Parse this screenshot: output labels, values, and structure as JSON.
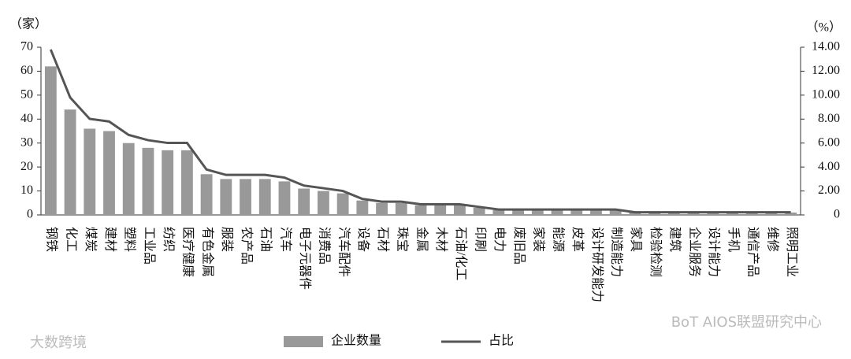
{
  "chart_data": {
    "type": "bar_line",
    "y_label": "（家）",
    "y2_label": "（%）",
    "categories": [
      "钢铁",
      "化工",
      "煤炭",
      "建材",
      "塑料",
      "工业品",
      "纺织",
      "医疗健康",
      "有色金属",
      "服装",
      "农产品",
      "石油",
      "汽车",
      "电子元器件",
      "消费品",
      "汽车配件",
      "设备",
      "石材",
      "珠宝",
      "金属",
      "木材",
      "石油/化工",
      "印刷",
      "电力",
      "废旧品",
      "家装",
      "能源",
      "皮革",
      "设计研发能力",
      "制造能力",
      "家具",
      "检验检测",
      "建筑",
      "企业服务",
      "设计能力",
      "手机",
      "通信产品",
      "维修",
      "照明工业"
    ],
    "series": [
      {
        "name": "企业数量",
        "color": "#999999",
        "kind": "bar",
        "values": [
          62,
          44,
          36,
          35,
          30,
          28,
          27,
          27,
          17,
          15,
          15,
          15,
          14,
          11,
          10,
          9,
          6,
          5,
          5,
          4,
          4,
          4,
          3,
          2,
          2,
          2,
          2,
          2,
          2,
          2,
          1,
          1,
          1,
          1,
          1,
          1,
          1,
          1,
          1
        ]
      },
      {
        "name": "占比",
        "color": "#555555",
        "kind": "line",
        "axis": "y2",
        "values": [
          13.81,
          9.8,
          8.02,
          7.8,
          6.68,
          6.24,
          6.01,
          6.01,
          3.79,
          3.34,
          3.34,
          3.34,
          3.12,
          2.45,
          2.23,
          2.0,
          1.34,
          1.11,
          1.11,
          0.89,
          0.89,
          0.89,
          0.67,
          0.45,
          0.45,
          0.45,
          0.45,
          0.45,
          0.45,
          0.45,
          0.22,
          0.22,
          0.22,
          0.22,
          0.22,
          0.22,
          0.22,
          0.22,
          0.22
        ]
      }
    ],
    "ylim": [
      0,
      70
    ],
    "yticks": [
      0,
      10,
      20,
      30,
      40,
      50,
      60,
      70
    ],
    "y2lim": [
      0,
      14
    ],
    "y2ticks": [
      0,
      {
        "value": 2,
        "label": "2.00"
      },
      {
        "value": 4,
        "label": "4.00"
      },
      {
        "value": 6,
        "label": "6.00"
      },
      {
        "value": 8,
        "label": "8.00"
      },
      {
        "value": 10,
        "label": "10.00"
      },
      {
        "value": 12,
        "label": "12.00"
      },
      {
        "value": 14,
        "label": "14.00"
      }
    ],
    "watermarks": [
      "大数跨境",
      "BoT AIOS联盟研究中心"
    ]
  }
}
